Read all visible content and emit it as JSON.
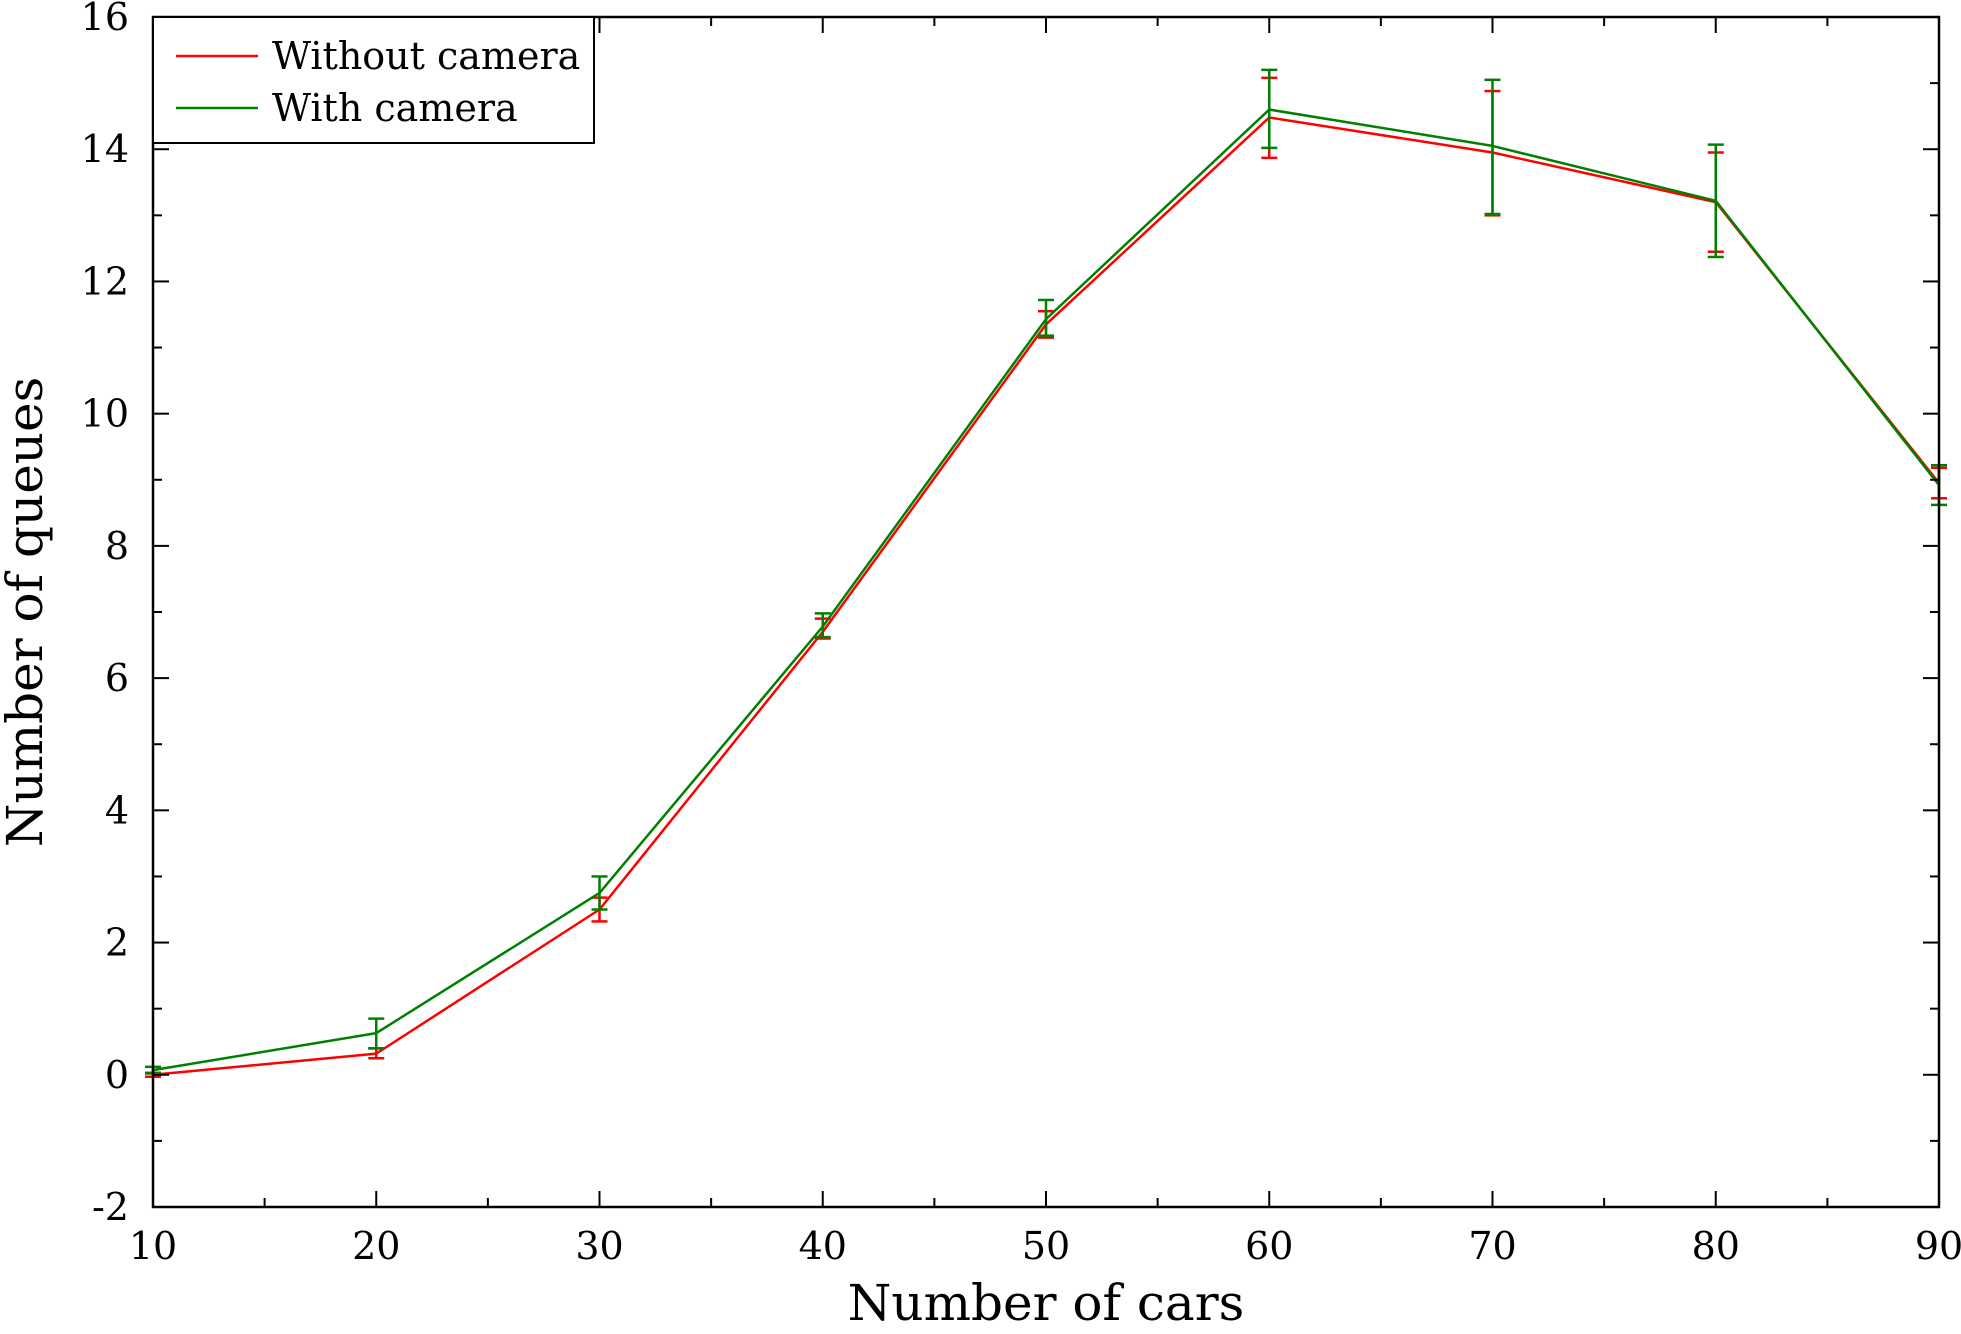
{
  "chart_data": {
    "type": "line",
    "xlabel": "Number of cars",
    "ylabel": "Number of queues",
    "xlim": [
      10,
      90
    ],
    "ylim": [
      -2,
      16
    ],
    "x_ticks": [
      "10",
      "20",
      "30",
      "40",
      "50",
      "60",
      "70",
      "80",
      "90"
    ],
    "y_ticks": [
      "-2",
      "0",
      "2",
      "4",
      "6",
      "8",
      "10",
      "12",
      "14",
      "16"
    ],
    "grid": false,
    "legend_position": "top-left",
    "x": [
      10,
      20,
      30,
      40,
      50,
      60,
      70,
      80,
      90
    ],
    "series": [
      {
        "name": "Without camera",
        "color": "#ff0000",
        "values": [
          0.0,
          0.32,
          2.5,
          6.7,
          11.35,
          14.48,
          13.95,
          13.2,
          8.95
        ],
        "err_low": [
          -0.03,
          0.25,
          2.32,
          6.6,
          11.15,
          13.87,
          13.0,
          12.45,
          8.72
        ],
        "err_high": [
          0.03,
          0.4,
          2.68,
          6.9,
          11.55,
          15.08,
          14.88,
          13.95,
          9.18
        ]
      },
      {
        "name": "With camera",
        "color": "#008000",
        "values": [
          0.07,
          0.63,
          2.75,
          6.78,
          11.43,
          14.6,
          14.05,
          13.22,
          8.92
        ],
        "err_low": [
          0.02,
          0.4,
          2.5,
          6.62,
          11.18,
          14.02,
          13.02,
          12.37,
          8.62
        ],
        "err_high": [
          0.12,
          0.85,
          3.0,
          6.98,
          11.72,
          15.2,
          15.05,
          14.07,
          9.22
        ]
      }
    ]
  }
}
